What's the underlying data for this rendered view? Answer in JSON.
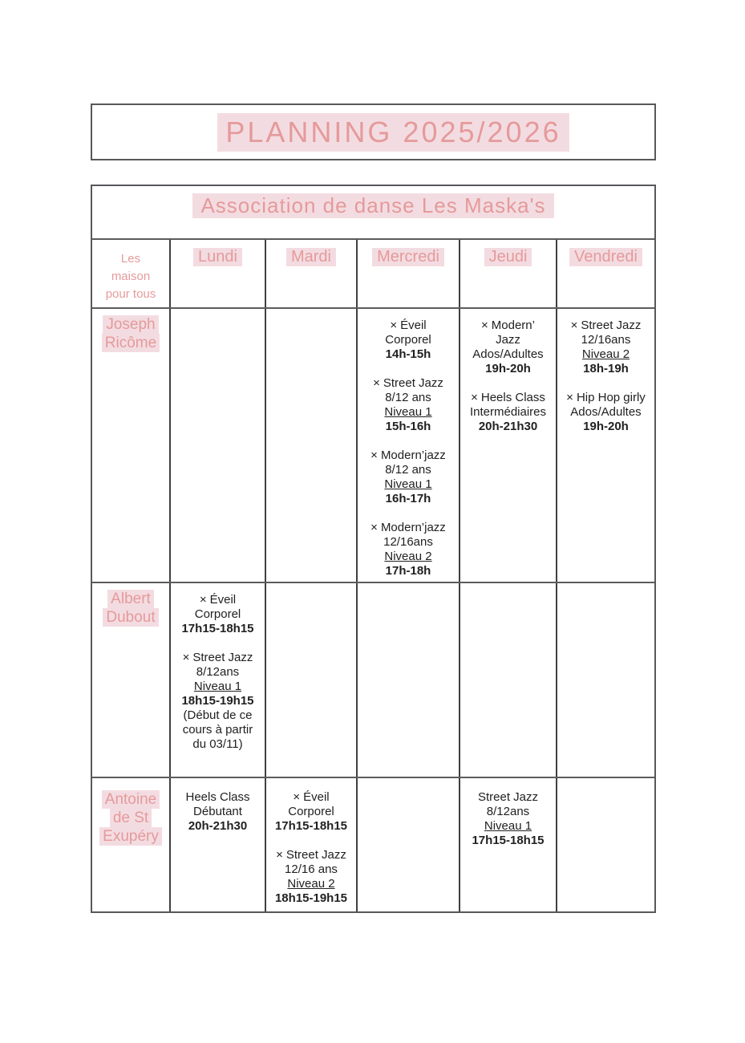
{
  "page_title": "PLANNING 2025/2026",
  "schedule": {
    "title": "Association de danse Les Maska's",
    "corner_lines": [
      "Les",
      "maison",
      "pour tous"
    ],
    "day_headers": [
      "Lundi",
      "Mardi",
      "Mercredi",
      "Jeudi",
      "Vendredi"
    ],
    "locations": [
      {
        "name_lines": [
          "Joseph",
          "Ricôme"
        ],
        "days": [
          {
            "day": "Lundi",
            "classes": []
          },
          {
            "day": "Mardi",
            "classes": []
          },
          {
            "day": "Mercredi",
            "classes": [
              {
                "bullet": "×",
                "lines": [
                  {
                    "text": "Éveil",
                    "style": "normal"
                  },
                  {
                    "text": "Corporel",
                    "style": "normal"
                  },
                  {
                    "text": "14h-15h",
                    "style": "bold"
                  }
                ]
              },
              {
                "bullet": "×",
                "lines": [
                  {
                    "text": "Street Jazz",
                    "style": "normal"
                  },
                  {
                    "text": "8/12 ans",
                    "style": "normal"
                  },
                  {
                    "text": "Niveau 1",
                    "style": "underline"
                  },
                  {
                    "text": "15h-16h",
                    "style": "bold"
                  }
                ]
              },
              {
                "bullet": "×",
                "lines": [
                  {
                    "text": "Modern’jazz",
                    "style": "normal"
                  },
                  {
                    "text": "8/12 ans",
                    "style": "normal"
                  },
                  {
                    "text": "Niveau 1",
                    "style": "underline"
                  },
                  {
                    "text": "16h-17h",
                    "style": "bold"
                  }
                ]
              },
              {
                "bullet": "×",
                "lines": [
                  {
                    "text": "Modern’jazz",
                    "style": "normal"
                  },
                  {
                    "text": "12/16ans",
                    "style": "normal"
                  },
                  {
                    "text": "Niveau 2",
                    "style": "underline"
                  },
                  {
                    "text": "17h-18h",
                    "style": "bold"
                  }
                ]
              }
            ]
          },
          {
            "day": "Jeudi",
            "classes": [
              {
                "bullet": "×",
                "lines": [
                  {
                    "text": "Modern’",
                    "style": "normal"
                  },
                  {
                    "text": "Jazz",
                    "style": "normal"
                  },
                  {
                    "text": "Ados/Adultes",
                    "style": "normal"
                  },
                  {
                    "text": "19h-20h",
                    "style": "bold"
                  }
                ]
              },
              {
                "bullet": "×",
                "lines": [
                  {
                    "text": "Heels Class",
                    "style": "normal"
                  },
                  {
                    "text": "Intermédiaires",
                    "style": "normal"
                  },
                  {
                    "text": "20h-21h30",
                    "style": "bold"
                  }
                ]
              }
            ]
          },
          {
            "day": "Vendredi",
            "classes": [
              {
                "bullet": "×",
                "lines": [
                  {
                    "text": "Street Jazz",
                    "style": "normal"
                  },
                  {
                    "text": "12/16ans",
                    "style": "normal"
                  },
                  {
                    "text": "Niveau 2",
                    "style": "underline"
                  },
                  {
                    "text": "18h-19h",
                    "style": "bold"
                  }
                ]
              },
              {
                "bullet": "×",
                "lines": [
                  {
                    "text": "Hip Hop girly",
                    "style": "normal"
                  },
                  {
                    "text": "Ados/Adultes",
                    "style": "normal"
                  },
                  {
                    "text": "19h-20h",
                    "style": "bold"
                  }
                ]
              }
            ]
          }
        ]
      },
      {
        "name_lines": [
          "Albert",
          "Dubout"
        ],
        "days": [
          {
            "day": "Lundi",
            "classes": [
              {
                "bullet": "×",
                "lines": [
                  {
                    "text": "Éveil",
                    "style": "normal"
                  },
                  {
                    "text": "Corporel",
                    "style": "normal"
                  },
                  {
                    "text": "17h15-18h15",
                    "style": "bold"
                  }
                ]
              },
              {
                "bullet": "×",
                "lines": [
                  {
                    "text": "Street Jazz",
                    "style": "normal"
                  },
                  {
                    "text": "8/12ans",
                    "style": "normal"
                  },
                  {
                    "text": "Niveau 1",
                    "style": "underline"
                  },
                  {
                    "text": "18h15-19h15",
                    "style": "bold"
                  },
                  {
                    "text": "(Début de ce",
                    "style": "normal"
                  },
                  {
                    "text": "cours à partir",
                    "style": "normal"
                  },
                  {
                    "text": "du 03/11)",
                    "style": "normal"
                  }
                ]
              }
            ]
          },
          {
            "day": "Mardi",
            "classes": []
          },
          {
            "day": "Mercredi",
            "classes": []
          },
          {
            "day": "Jeudi",
            "classes": []
          },
          {
            "day": "Vendredi",
            "classes": []
          }
        ]
      },
      {
        "name_lines": [
          "Antoine",
          "de St",
          "Exupéry"
        ],
        "days": [
          {
            "day": "Lundi",
            "classes": [
              {
                "bullet": "",
                "lines": [
                  {
                    "text": "Heels Class",
                    "style": "normal"
                  },
                  {
                    "text": "Débutant",
                    "style": "normal"
                  },
                  {
                    "text": "20h-21h30",
                    "style": "bold"
                  }
                ]
              }
            ]
          },
          {
            "day": "Mardi",
            "classes": [
              {
                "bullet": "×",
                "lines": [
                  {
                    "text": "Éveil",
                    "style": "normal"
                  },
                  {
                    "text": "Corporel",
                    "style": "normal"
                  },
                  {
                    "text": "17h15-18h15",
                    "style": "bold"
                  }
                ]
              },
              {
                "bullet": "×",
                "lines": [
                  {
                    "text": "Street Jazz",
                    "style": "normal"
                  },
                  {
                    "text": "12/16 ans",
                    "style": "normal"
                  },
                  {
                    "text": "Niveau 2",
                    "style": "underline"
                  },
                  {
                    "text": "18h15-19h15",
                    "style": "bold"
                  }
                ]
              }
            ]
          },
          {
            "day": "Mercredi",
            "classes": []
          },
          {
            "day": "Jeudi",
            "classes": [
              {
                "bullet": "",
                "lines": [
                  {
                    "text": "Street Jazz",
                    "style": "normal"
                  },
                  {
                    "text": "8/12ans",
                    "style": "normal"
                  },
                  {
                    "text": "Niveau 1",
                    "style": "underline"
                  },
                  {
                    "text": "17h15-18h15",
                    "style": "bold"
                  }
                ]
              }
            ]
          },
          {
            "day": "Vendredi",
            "classes": []
          }
        ]
      }
    ]
  },
  "colors": {
    "accent_text": "#e59a9b",
    "highlight_bg": "#f3dce1",
    "body_text": "#212121"
  }
}
